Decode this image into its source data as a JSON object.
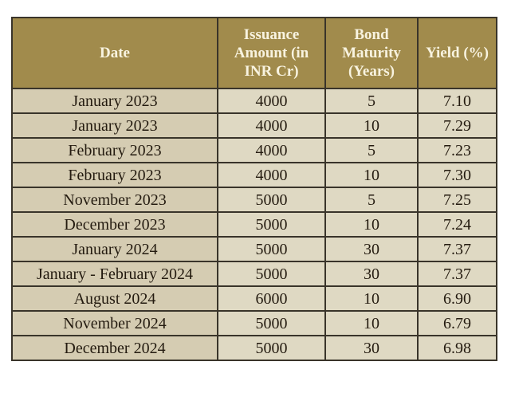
{
  "colors": {
    "header_background": "#a18b4c",
    "header_text": "#f8f3e0",
    "date_column_background": "#d5ccb2",
    "value_column_background": "#dfd9c3",
    "border": "#39342a",
    "body_text": "#241b10",
    "page_background": "#ffffff"
  },
  "table": {
    "columns": [
      "Date",
      "Issuance Amount (in INR Cr)",
      "Bond Maturity (Years)",
      "Yield (%)"
    ],
    "rows": [
      {
        "date": "January 2023",
        "amount": "4000",
        "maturity": "5",
        "yield": "7.10"
      },
      {
        "date": "January 2023",
        "amount": "4000",
        "maturity": "10",
        "yield": "7.29"
      },
      {
        "date": "February 2023",
        "amount": "4000",
        "maturity": "5",
        "yield": "7.23"
      },
      {
        "date": "February 2023",
        "amount": "4000",
        "maturity": "10",
        "yield": "7.30"
      },
      {
        "date": "November 2023",
        "amount": "5000",
        "maturity": "5",
        "yield": "7.25"
      },
      {
        "date": "December 2023",
        "amount": "5000",
        "maturity": "10",
        "yield": "7.24"
      },
      {
        "date": "January 2024",
        "amount": "5000",
        "maturity": "30",
        "yield": "7.37"
      },
      {
        "date": "January - February 2024",
        "amount": "5000",
        "maturity": "30",
        "yield": "7.37"
      },
      {
        "date": "August 2024",
        "amount": "6000",
        "maturity": "10",
        "yield": "6.90"
      },
      {
        "date": "November 2024",
        "amount": "5000",
        "maturity": "10",
        "yield": "6.79"
      },
      {
        "date": "December 2024",
        "amount": "5000",
        "maturity": "30",
        "yield": "6.98"
      }
    ]
  },
  "chart_data": {
    "type": "table",
    "title": "",
    "columns": [
      "Date",
      "Issuance Amount (in INR Cr)",
      "Bond Maturity (Years)",
      "Yield (%)"
    ],
    "rows": [
      [
        "January 2023",
        4000,
        5,
        7.1
      ],
      [
        "January 2023",
        4000,
        10,
        7.29
      ],
      [
        "February 2023",
        4000,
        5,
        7.23
      ],
      [
        "February 2023",
        4000,
        10,
        7.3
      ],
      [
        "November 2023",
        5000,
        5,
        7.25
      ],
      [
        "December 2023",
        5000,
        10,
        7.24
      ],
      [
        "January 2024",
        5000,
        30,
        7.37
      ],
      [
        "January - February 2024",
        5000,
        30,
        7.37
      ],
      [
        "August 2024",
        6000,
        10,
        6.9
      ],
      [
        "November 2024",
        5000,
        10,
        6.79
      ],
      [
        "December 2024",
        5000,
        30,
        6.98
      ]
    ]
  }
}
